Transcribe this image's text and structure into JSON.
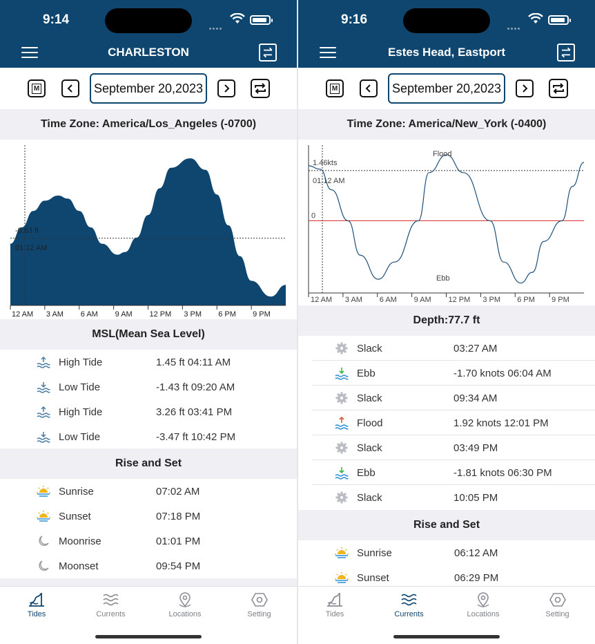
{
  "left": {
    "status": {
      "time": "9:14"
    },
    "nav": {
      "title": "CHARLESTON"
    },
    "date": "September 20,2023",
    "timezone": "Time Zone: America/Los_Angeles (-0700)",
    "chart_cursor": {
      "value": "-0.63 ft",
      "time": "01:12 AM"
    },
    "x_ticks": [
      "12 AM",
      "3 AM",
      "6 AM",
      "9 AM",
      "12 PM",
      "3 PM",
      "6 PM",
      "9 PM"
    ],
    "tides_header": "MSL(Mean Sea Level)",
    "tides": [
      {
        "label": "High Tide",
        "value": "1.45 ft  04:11 AM",
        "icon": "high-tide-icon"
      },
      {
        "label": "Low Tide",
        "value": "-1.43 ft  09:20 AM",
        "icon": "low-tide-icon"
      },
      {
        "label": "High Tide",
        "value": "3.26 ft  03:41 PM",
        "icon": "high-tide-icon"
      },
      {
        "label": "Low Tide",
        "value": "-3.47 ft  10:42 PM",
        "icon": "low-tide-icon"
      }
    ],
    "rise_set_header": "Rise and Set",
    "rise_set": [
      {
        "label": "Sunrise",
        "value": "07:02 AM",
        "icon": "sunrise-icon"
      },
      {
        "label": "Sunset",
        "value": "07:18 PM",
        "icon": "sunset-icon"
      },
      {
        "label": "Moonrise",
        "value": "01:01 PM",
        "icon": "moonrise-icon"
      },
      {
        "label": "Moonset",
        "value": "09:54 PM",
        "icon": "moonset-icon"
      }
    ],
    "tabs": [
      {
        "label": "Tides",
        "icon": "tides-icon",
        "active": true
      },
      {
        "label": "Currents",
        "icon": "currents-icon",
        "active": false
      },
      {
        "label": "Locations",
        "icon": "location-pin-icon",
        "active": false
      },
      {
        "label": "Setting",
        "icon": "gear-hex-icon",
        "active": false
      }
    ]
  },
  "right": {
    "status": {
      "time": "9:16"
    },
    "nav": {
      "title": "Estes Head, Eastport"
    },
    "date": "September 20,2023",
    "timezone": "Time Zone: America/New_York (-0400)",
    "chart_cursor": {
      "value": "1.46kts",
      "time": "01:12 AM"
    },
    "chart_labels": {
      "flood": "Flood",
      "ebb": "Ebb",
      "zero": "0"
    },
    "x_ticks": [
      "12 AM",
      "3 AM",
      "6 AM",
      "9 AM",
      "12 PM",
      "3 PM",
      "6 PM",
      "9 PM"
    ],
    "depth_header": "Depth:77.7 ft",
    "currents": [
      {
        "label": "Slack",
        "value": "03:27 AM",
        "icon": "slack-icon"
      },
      {
        "label": "Ebb",
        "value": "-1.70 knots 06:04 AM",
        "icon": "ebb-icon"
      },
      {
        "label": "Slack",
        "value": "09:34 AM",
        "icon": "slack-icon"
      },
      {
        "label": "Flood",
        "value": "1.92 knots 12:01 PM",
        "icon": "flood-icon"
      },
      {
        "label": "Slack",
        "value": "03:49 PM",
        "icon": "slack-icon"
      },
      {
        "label": "Ebb",
        "value": "-1.81 knots 06:30 PM",
        "icon": "ebb-icon"
      },
      {
        "label": "Slack",
        "value": "10:05 PM",
        "icon": "slack-icon"
      }
    ],
    "rise_set_header": "Rise and Set",
    "rise_set": [
      {
        "label": "Sunrise",
        "value": "06:12 AM",
        "icon": "sunrise-icon"
      },
      {
        "label": "Sunset",
        "value": "06:29 PM",
        "icon": "sunset-icon"
      }
    ],
    "tabs": [
      {
        "label": "Tides",
        "icon": "tides-icon",
        "active": false
      },
      {
        "label": "Currents",
        "icon": "currents-icon",
        "active": true
      },
      {
        "label": "Locations",
        "icon": "location-pin-icon",
        "active": false
      },
      {
        "label": "Setting",
        "icon": "gear-hex-icon",
        "active": false
      }
    ]
  },
  "colors": {
    "brand": "#0e4670",
    "zero_line": "#d9302a",
    "section_bg": "#efeff4"
  },
  "chart_data": [
    {
      "type": "area",
      "title": "",
      "x_ticks": [
        "12 AM",
        "3 AM",
        "6 AM",
        "9 AM",
        "12 PM",
        "3 PM",
        "6 PM",
        "9 PM"
      ],
      "x_hours": [
        0,
        1,
        2,
        3,
        4.18,
        5,
        6,
        7,
        8,
        9.33,
        10,
        11,
        12,
        13,
        14,
        15.68,
        17,
        18,
        19,
        20,
        21,
        22.7,
        24
      ],
      "y_ft": [
        -0.9,
        -0.1,
        0.7,
        1.2,
        1.45,
        1.3,
        0.7,
        -0.1,
        -0.9,
        -1.43,
        -1.3,
        -0.6,
        0.5,
        1.8,
        2.8,
        3.26,
        2.7,
        1.5,
        0.0,
        -1.5,
        -2.7,
        -3.47,
        -2.9
      ],
      "cursor": {
        "hour": 1.2,
        "value_ft": -0.63
      },
      "unit": "ft"
    },
    {
      "type": "line",
      "title": "",
      "x_ticks": [
        "12 AM",
        "3 AM",
        "6 AM",
        "9 AM",
        "12 PM",
        "3 PM",
        "6 PM",
        "9 PM"
      ],
      "x_hours": [
        0,
        1,
        2,
        3.45,
        4.5,
        6.07,
        7.5,
        9.57,
        10.5,
        12.02,
        13.5,
        15.82,
        17,
        18.5,
        19.5,
        20.5,
        22.08,
        23,
        24
      ],
      "y_knots": [
        1.6,
        1.5,
        0.9,
        0.0,
        -1.0,
        -1.7,
        -1.2,
        0.0,
        1.4,
        1.92,
        1.4,
        0.0,
        -1.2,
        -1.81,
        -1.5,
        -0.6,
        0.0,
        1.0,
        1.7
      ],
      "cursor": {
        "hour": 1.2,
        "value_knots": 1.46
      },
      "zero_line": true,
      "annotations": [
        "Flood",
        "Ebb",
        "0"
      ],
      "unit": "knots"
    }
  ]
}
